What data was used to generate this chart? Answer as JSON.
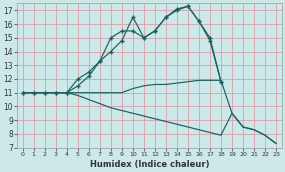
{
  "xlabel": "Humidex (Indice chaleur)",
  "bg_color": "#cce8e8",
  "grid_color": "#d8a0a8",
  "line_color": "#1a6060",
  "xlim": [
    -0.5,
    23.5
  ],
  "ylim": [
    7,
    17.5
  ],
  "xticks": [
    0,
    1,
    2,
    3,
    4,
    5,
    6,
    7,
    8,
    9,
    10,
    11,
    12,
    13,
    14,
    15,
    16,
    17,
    18,
    19,
    20,
    21,
    22,
    23
  ],
  "yticks": [
    7,
    8,
    9,
    10,
    11,
    12,
    13,
    14,
    15,
    16,
    17
  ],
  "line1_x": [
    0,
    1,
    2,
    3,
    4,
    5,
    6,
    7,
    8,
    9,
    10,
    11,
    12,
    13,
    14,
    15,
    16,
    17,
    18
  ],
  "line1_y": [
    11,
    11,
    11,
    11,
    11,
    12,
    12.5,
    13.3,
    14,
    14.8,
    16.5,
    15,
    15.5,
    16.5,
    17,
    17.3,
    16.2,
    14.8,
    11.8
  ],
  "line2_x": [
    0,
    1,
    2,
    3,
    4,
    5,
    6,
    7,
    8,
    9,
    10,
    11,
    12,
    13,
    14,
    15,
    16,
    17,
    18
  ],
  "line2_y": [
    11,
    11,
    11,
    11,
    11,
    11.5,
    12.2,
    13.3,
    15,
    15.5,
    15.5,
    15.0,
    15.5,
    16.5,
    17.1,
    17.3,
    16.2,
    15.0,
    11.8
  ],
  "line3_x": [
    0,
    1,
    2,
    3,
    4,
    5,
    6,
    7,
    8,
    9,
    10,
    11,
    12,
    13,
    14,
    15,
    16,
    17,
    18,
    19,
    20,
    21,
    22,
    23
  ],
  "line3_y": [
    11,
    11,
    11,
    11,
    11,
    11,
    11,
    11,
    11,
    11,
    11.3,
    11.5,
    11.6,
    11.6,
    11.7,
    11.8,
    11.9,
    11.9,
    11.9,
    9.5,
    8.5,
    8.3,
    7.9,
    7.3
  ],
  "line4_x": [
    0,
    1,
    2,
    3,
    4,
    5,
    6,
    7,
    8,
    9,
    10,
    11,
    12,
    13,
    14,
    15,
    16,
    17,
    18,
    19,
    20,
    21,
    22,
    23
  ],
  "line4_y": [
    11,
    11,
    11,
    11,
    11,
    10.8,
    10.5,
    10.2,
    9.9,
    9.7,
    9.5,
    9.3,
    9.1,
    8.9,
    8.7,
    8.5,
    8.3,
    8.1,
    7.9,
    9.5,
    8.5,
    8.3,
    7.9,
    7.3
  ]
}
